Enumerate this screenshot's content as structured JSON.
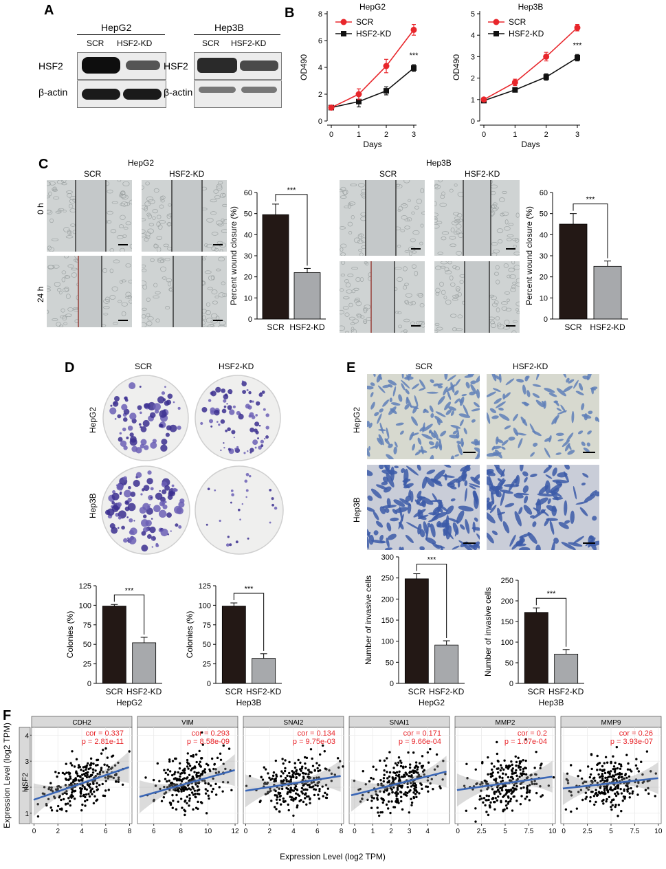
{
  "panels": {
    "A": "A",
    "B": "B",
    "C": "C",
    "D": "D",
    "E": "E",
    "F": "F"
  },
  "panelA": {
    "groups": [
      {
        "name": "HepG2",
        "lanes": [
          "SCR",
          "HSF2-KD"
        ],
        "rows": [
          "HSF2",
          "β-actin"
        ]
      },
      {
        "name": "Hep3B",
        "lanes": [
          "SCR",
          "HSF2-KD"
        ],
        "rows": [
          "HSF2",
          "β-actin"
        ]
      }
    ]
  },
  "panelB": {
    "charts": [
      {
        "title": "HepG2",
        "ylabel": "OD490",
        "xlabel": "Days",
        "legend": [
          "SCR",
          "HSF2-KD"
        ],
        "sig": "***"
      },
      {
        "title": "Hep3B",
        "ylabel": "OD490",
        "xlabel": "Days",
        "legend": [
          "SCR",
          "HSF2-KD"
        ],
        "sig": "***"
      }
    ]
  },
  "panelC": {
    "groups": [
      {
        "name": "HepG2",
        "cols": [
          "SCR",
          "HSF2-KD"
        ],
        "rows": [
          "0 h",
          "24 h"
        ]
      },
      {
        "name": "Hep3B",
        "cols": [
          "SCR",
          "HSF2-KD"
        ]
      }
    ],
    "ylabel": "Percent wound closure (%)",
    "sig": "***"
  },
  "panelD": {
    "cols": [
      "SCR",
      "HSF2-KD"
    ],
    "rows": [
      "HepG2",
      "Hep3B"
    ],
    "ylabel": "Colonies (%)",
    "sig": "***",
    "xgroups": [
      "HepG2",
      "Hep3B"
    ]
  },
  "panelE": {
    "cols": [
      "SCR",
      "HSF2-KD"
    ],
    "rows": [
      "HepG2",
      "Hep3B"
    ],
    "ylabel": "Number of invasive cells",
    "sig": "***",
    "xgroups": [
      "HepG2",
      "Hep3B"
    ]
  },
  "panelF": {
    "ylabel": "Expression Level (log2 TPM)",
    "xlabel": "Expression Level (log2 TPM)",
    "rowstrip": "HSF2",
    "facets": [
      {
        "gene": "CDH2",
        "cor": "cor = 0.337",
        "p": "p = 2.81e-11"
      },
      {
        "gene": "VIM",
        "cor": "cor = 0.293",
        "p": "p = 8.58e-09"
      },
      {
        "gene": "SNAI2",
        "cor": "cor = 0.134",
        "p": "p = 9.75e-03"
      },
      {
        "gene": "SNAI1",
        "cor": "cor = 0.171",
        "p": "p = 9.66e-04"
      },
      {
        "gene": "MMP2",
        "cor": "cor = 0.2",
        "p": "p = 1.07e-04"
      },
      {
        "gene": "MMP9",
        "cor": "cor = 0.26",
        "p": "p = 3.93e-07"
      }
    ]
  },
  "chart_data": [
    {
      "type": "line",
      "title": "HepG2",
      "xlabel": "Days",
      "ylabel": "OD490",
      "x": [
        0,
        1,
        2,
        3
      ],
      "xlim": [
        0,
        3
      ],
      "ylim": [
        0,
        8
      ],
      "yticks": [
        0,
        2,
        4,
        6,
        8
      ],
      "series": [
        {
          "name": "SCR",
          "color": "#e8262b",
          "values": [
            1.0,
            2.0,
            4.1,
            6.8
          ],
          "err": [
            0.1,
            0.4,
            0.5,
            0.4
          ]
        },
        {
          "name": "HSF2-KD",
          "color": "#111111",
          "values": [
            1.0,
            1.45,
            2.25,
            3.95
          ],
          "err": [
            0.1,
            0.4,
            0.3,
            0.25
          ]
        }
      ]
    },
    {
      "type": "line",
      "title": "Hep3B",
      "xlabel": "Days",
      "ylabel": "OD490",
      "x": [
        0,
        1,
        2,
        3
      ],
      "xlim": [
        0,
        3
      ],
      "ylim": [
        0,
        5
      ],
      "yticks": [
        0,
        1,
        2,
        3,
        4,
        5
      ],
      "series": [
        {
          "name": "SCR",
          "color": "#e8262b",
          "values": [
            1.0,
            1.8,
            3.0,
            4.35
          ],
          "err": [
            0.05,
            0.15,
            0.2,
            0.15
          ]
        },
        {
          "name": "HSF2-KD",
          "color": "#111111",
          "values": [
            0.95,
            1.45,
            2.05,
            2.95
          ],
          "err": [
            0.05,
            0.1,
            0.15,
            0.15
          ]
        }
      ]
    },
    {
      "type": "bar",
      "categories": [
        "SCR",
        "HSF2-KD"
      ],
      "values": [
        49.5,
        22.0
      ],
      "err": [
        5,
        2
      ],
      "ylim": [
        0,
        60
      ],
      "yticks": [
        0,
        10,
        20,
        30,
        40,
        50,
        60
      ],
      "ylabel": "Percent wound closure (%)"
    },
    {
      "type": "bar",
      "categories": [
        "SCR",
        "HSF2-KD"
      ],
      "values": [
        45,
        25
      ],
      "err": [
        5,
        2.5
      ],
      "ylim": [
        0,
        60
      ],
      "yticks": [
        0,
        10,
        20,
        30,
        40,
        50,
        60
      ],
      "ylabel": "Percent wound closure (%)"
    },
    {
      "type": "bar",
      "categories": [
        "SCR",
        "HSF2-KD"
      ],
      "values": [
        99,
        52
      ],
      "err": [
        2,
        7
      ],
      "ylim": [
        0,
        125
      ],
      "yticks": [
        0,
        25,
        50,
        75,
        100,
        125
      ],
      "ylabel": "Colonies (%)",
      "xlabel": "HepG2"
    },
    {
      "type": "bar",
      "categories": [
        "SCR",
        "HSF2-KD"
      ],
      "values": [
        99,
        32
      ],
      "err": [
        4,
        6
      ],
      "ylim": [
        0,
        125
      ],
      "yticks": [
        0,
        25,
        50,
        75,
        100,
        125
      ],
      "ylabel": "Colonies (%)",
      "xlabel": "Hep3B"
    },
    {
      "type": "bar",
      "categories": [
        "SCR",
        "HSF2-KD"
      ],
      "values": [
        248,
        91
      ],
      "err": [
        12,
        10
      ],
      "ylim": [
        0,
        300
      ],
      "yticks": [
        0,
        50,
        100,
        150,
        200,
        250,
        300
      ],
      "ylabel": "Number of invasive cells",
      "xlabel": "HepG2"
    },
    {
      "type": "bar",
      "categories": [
        "SCR",
        "HSF2-KD"
      ],
      "values": [
        172,
        71
      ],
      "err": [
        11,
        11
      ],
      "ylim": [
        0,
        250
      ],
      "yticks": [
        0,
        50,
        100,
        150,
        200,
        250
      ],
      "ylabel": "Number of invasive cells",
      "xlabel": "Hep3B"
    },
    {
      "type": "scatter",
      "facets": [
        "CDH2",
        "VIM",
        "SNAI2",
        "SNAI1",
        "MMP2",
        "MMP9"
      ],
      "ylim": [
        0.6,
        4.3
      ],
      "yticks": [
        1,
        2,
        3,
        4
      ],
      "xticks": [
        [
          0,
          2,
          4,
          6,
          8
        ],
        [
          6,
          8,
          10,
          12
        ],
        [
          0,
          2,
          4,
          6,
          8
        ],
        [
          0,
          1,
          2,
          3,
          4
        ],
        [
          0,
          2.5,
          5,
          7.5,
          10
        ],
        [
          0,
          2.5,
          5,
          7.5,
          10
        ]
      ],
      "xlims": [
        [
          -0.2,
          8.2
        ],
        [
          4.8,
          12.2
        ],
        [
          -0.2,
          8.2
        ],
        [
          -0.3,
          5.2
        ],
        [
          -0.3,
          10.3
        ],
        [
          -0.3,
          10.3
        ]
      ]
    }
  ]
}
